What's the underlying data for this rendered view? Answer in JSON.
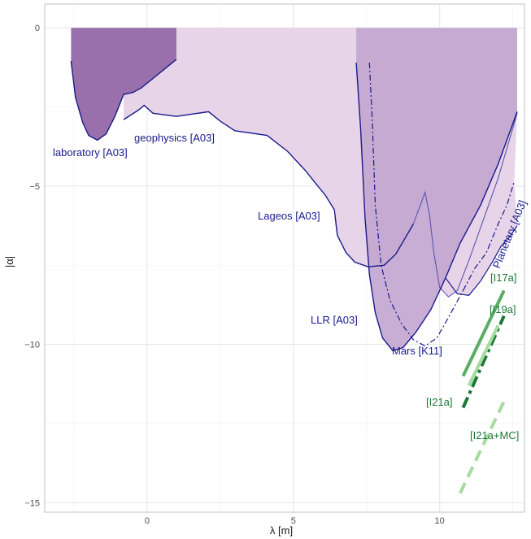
{
  "chart_data": {
    "type": "area",
    "xlabel": "λ [m]",
    "ylabel": "|α|",
    "xlim": [
      -3.5,
      12.9
    ],
    "ylim": [
      -15.3,
      0.75
    ],
    "x_ticks": [
      0,
      5,
      10
    ],
    "y_ticks": [
      0,
      -5,
      -10,
      -15
    ],
    "x_tick_labels": [
      "0",
      "5",
      "10"
    ],
    "y_tick_labels": [
      "0",
      "−5",
      "−10",
      "−15"
    ],
    "grid": true,
    "colors": {
      "fill_light": "#e7d4e8",
      "fill_mid": "#c2a5cf",
      "fill_dark": "#9970ab",
      "boundary": "#1a1a8c",
      "bound_green_dark": "#1b7837",
      "bound_green_mid": "#5aae61",
      "bound_green_light": "#a6dba0",
      "annotation_green": "#1b7837",
      "annotation_blue": "#1a1a8c"
    },
    "regions": [
      {
        "label": "laboratory [A03]",
        "fill": "fill_dark",
        "boundary": [
          [
            -2.6,
            -1.05
          ],
          [
            -2.45,
            -2.2
          ],
          [
            -2.2,
            -3.0
          ],
          [
            -2.0,
            -3.4
          ],
          [
            -1.7,
            -3.55
          ],
          [
            -1.4,
            -3.35
          ],
          [
            -1.1,
            -2.8
          ],
          [
            -0.8,
            -2.1
          ],
          [
            -0.5,
            -2.05
          ],
          [
            -0.2,
            -1.9
          ],
          [
            0.2,
            -1.6
          ],
          [
            0.6,
            -1.3
          ],
          [
            1.0,
            -1.0
          ]
        ]
      },
      {
        "label": "geophysics [A03]",
        "fill": "fill_light",
        "boundary": [
          [
            -0.8,
            -2.9
          ],
          [
            -0.3,
            -2.6
          ],
          [
            -0.1,
            -2.45
          ],
          [
            0.2,
            -2.7
          ],
          [
            1.0,
            -2.8
          ],
          [
            2.1,
            -2.65
          ],
          [
            2.5,
            -2.95
          ],
          [
            3.0,
            -3.25
          ],
          [
            4.1,
            -3.4
          ],
          [
            4.8,
            -3.9
          ],
          [
            5.4,
            -4.5
          ],
          [
            6.1,
            -5.3
          ],
          [
            6.4,
            -5.75
          ],
          [
            6.5,
            -6.55
          ],
          [
            6.8,
            -7.1
          ],
          [
            7.1,
            -7.4
          ],
          [
            7.55,
            -7.55
          ],
          [
            8.1,
            -7.5
          ],
          [
            8.5,
            -7.15
          ],
          [
            9.1,
            -6.2
          ],
          [
            9.5,
            -5.2
          ],
          [
            9.65,
            -5.9
          ],
          [
            9.8,
            -7.1
          ],
          [
            10.0,
            -8.2
          ],
          [
            10.3,
            -8.5
          ],
          [
            10.6,
            -8.3
          ],
          [
            11.0,
            -7.35
          ],
          [
            11.5,
            -6.05
          ],
          [
            12.0,
            -4.75
          ],
          [
            12.65,
            -2.7
          ]
        ]
      },
      {
        "label": "Lageos [A03]",
        "fill": "fill_light",
        "boundary": []
      },
      {
        "label": "LLR [A03]",
        "fill": "fill_mid",
        "boundary": [
          [
            7.15,
            -1.1
          ],
          [
            7.3,
            -3.2
          ],
          [
            7.45,
            -6.0
          ],
          [
            7.6,
            -7.8
          ],
          [
            7.8,
            -9.0
          ],
          [
            8.05,
            -9.8
          ],
          [
            8.4,
            -10.2
          ],
          [
            8.75,
            -10.1
          ],
          [
            9.2,
            -9.6
          ],
          [
            9.7,
            -8.9
          ],
          [
            10.2,
            -7.9
          ],
          [
            10.7,
            -6.8
          ],
          [
            11.4,
            -5.6
          ],
          [
            12.0,
            -4.3
          ],
          [
            12.65,
            -2.65
          ]
        ]
      },
      {
        "label": "Mars [K11]",
        "fill": "none",
        "boundary": [
          [
            7.6,
            -1.1
          ],
          [
            7.7,
            -3.0
          ],
          [
            7.8,
            -5.6
          ],
          [
            8.0,
            -7.5
          ],
          [
            8.3,
            -8.6
          ],
          [
            8.7,
            -9.35
          ],
          [
            9.1,
            -9.85
          ],
          [
            9.5,
            -10.05
          ],
          [
            9.9,
            -9.8
          ],
          [
            10.3,
            -9.15
          ],
          [
            10.8,
            -8.3
          ]
        ]
      },
      {
        "label": "Planetary [A03]",
        "fill": "fill_light",
        "boundary": [
          [
            10.8,
            -8.3
          ],
          [
            11.2,
            -7.6
          ],
          [
            11.6,
            -7.1
          ],
          [
            12.0,
            -6.2
          ],
          [
            12.3,
            -5.6
          ],
          [
            12.55,
            -4.85
          ]
        ]
      }
    ],
    "planetary_solid_boundary": [
      [
        10.2,
        -7.9
      ],
      [
        10.6,
        -8.4
      ],
      [
        11.0,
        -8.45
      ],
      [
        11.4,
        -8.0
      ],
      [
        11.8,
        -7.4
      ],
      [
        12.1,
        -6.9
      ],
      [
        12.4,
        -6.6
      ],
      [
        12.65,
        -6.25
      ]
    ],
    "bounds": [
      {
        "label": "[I17a]",
        "color": "bound_green_mid",
        "dash": "solid",
        "points": [
          [
            10.8,
            -11.0
          ],
          [
            12.2,
            -8.3
          ]
        ]
      },
      {
        "label": "[I19a]",
        "color": "bound_green_dark",
        "dash": "dashdot",
        "points": [
          [
            10.8,
            -12.0
          ],
          [
            12.2,
            -9.1
          ]
        ]
      },
      {
        "label": "[I21a]",
        "color": "bound_green_light",
        "dash": "solid",
        "points": [
          [
            11.0,
            -11.3
          ],
          [
            12.0,
            -9.4
          ]
        ]
      },
      {
        "label": "[I21a+MC]",
        "color": "bound_green_light",
        "dash": "dashed",
        "points": [
          [
            10.7,
            -14.7
          ],
          [
            12.2,
            -11.8
          ]
        ]
      }
    ]
  },
  "annotations": {
    "laboratory": "laboratory [A03]",
    "geophysics": "geophysics [A03]",
    "lageos": "Lageos [A03]",
    "llr": "LLR [A03]",
    "mars": "Mars [K11]",
    "planetary": "Planetary [A03]",
    "i17a": "[I17a]",
    "i19a": "[I19a]",
    "i21a": "[I21a]",
    "i21amc": "[I21a+MC]"
  }
}
